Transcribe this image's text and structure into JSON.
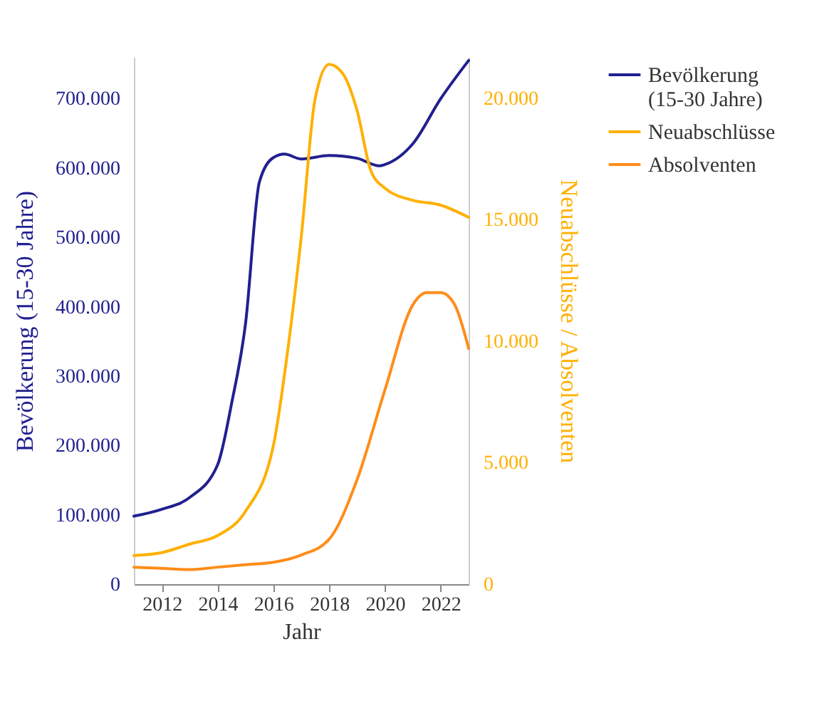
{
  "chart_data": {
    "type": "line",
    "xlabel": "Jahr",
    "ylabel": "Bevölkerung (15-30 Jahre)",
    "y2label": "Neuabschlüsse / Absolventen",
    "xlim": [
      2011,
      2023
    ],
    "xticks": [
      2012,
      2014,
      2016,
      2018,
      2020,
      2022
    ],
    "ylim": [
      0,
      760000
    ],
    "yticks": [
      0,
      {
        "value": 100000,
        "label": "100.000"
      },
      {
        "value": 200000,
        "label": "200.000"
      },
      {
        "value": 300000,
        "label": "300.000"
      },
      {
        "value": 400000,
        "label": "400.000"
      },
      {
        "value": 500000,
        "label": "500.000"
      },
      {
        "value": 600000,
        "label": "600.000"
      },
      {
        "value": 700000,
        "label": "700.000"
      }
    ],
    "y2lim": [
      0,
      21700
    ],
    "y2ticks": [
      0,
      {
        "value": 5000,
        "label": "5.000"
      },
      {
        "value": 10000,
        "label": "10.000"
      },
      {
        "value": 15000,
        "label": "15.000"
      },
      {
        "value": 20000,
        "label": "20.000"
      }
    ],
    "grid": false,
    "legend": "right",
    "series": [
      {
        "name": "Bevölkerung (15-30 Jahre)",
        "color": "#21208f",
        "x": [
          2011,
          2012,
          2013,
          2014,
          2014.5,
          2015,
          2015.5,
          2016,
          2016.4,
          2017,
          2018,
          2019,
          2019.8,
          2020,
          2021,
          2022,
          2023
        ],
        "values": [
          98000,
          108000,
          125000,
          172000,
          260000,
          375000,
          580000,
          615000,
          620000,
          613000,
          618000,
          614000,
          603000,
          605000,
          635000,
          700000,
          755000
        ]
      },
      {
        "name": "Neuabschlüsse",
        "color": "#ffb000",
        "axis": "y2",
        "x": [
          2011,
          2012,
          2013,
          2014,
          2015,
          2016,
          2016.5,
          2017,
          2017.5,
          2018,
          2018.5,
          2019,
          2019.5,
          2020,
          2021,
          2022,
          2023
        ],
        "values": [
          1180,
          1300,
          1650,
          2000,
          3000,
          5700,
          9500,
          14300,
          20000,
          21400,
          21000,
          19500,
          17000,
          16300,
          15800,
          15600,
          15100
        ]
      },
      {
        "name": "Absolventen",
        "color": "#ff8c1a",
        "axis": "y2",
        "x": [
          2011,
          2012,
          2013,
          2014,
          2015,
          2016,
          2017,
          2018,
          2019,
          2020,
          2021,
          2021.5,
          2022,
          2022.5,
          2023
        ],
        "values": [
          700,
          650,
          600,
          700,
          800,
          900,
          1200,
          1850,
          4300,
          8000,
          11500,
          12000,
          12000,
          11500,
          9700
        ]
      }
    ]
  }
}
